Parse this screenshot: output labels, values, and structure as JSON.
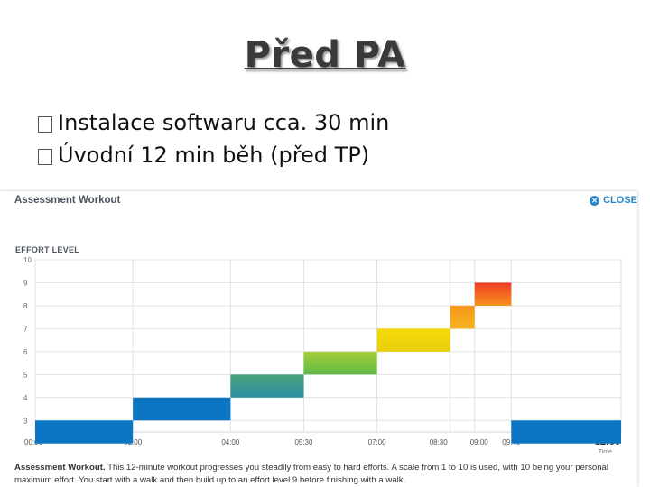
{
  "slide": {
    "title": "Před PA",
    "bullets": [
      {
        "icon": "checkbox-bullet-icon",
        "text": "Instalace softwaru cca. 30 min"
      },
      {
        "icon": "checkbox-bullet-icon",
        "text": "Úvodní 12 min běh (před TP)"
      }
    ]
  },
  "modal": {
    "title": "Assessment Workout",
    "close_label": "CLOSE",
    "effort_label": "EFFORT LEVEL",
    "footer_bold": "Assessment Workout.",
    "footer_text": " This 12-minute workout progresses you steadily from easy to hard efforts. A scale from 1 to 10 is used, with 10 being your personal maximum effort. You start with a walk and then build up to an effort level 9 before finishing with a walk."
  },
  "chart_data": {
    "type": "bar",
    "title": "",
    "ylabel": "EFFORT LEVEL",
    "xlabel": "Time",
    "y_ticks": [
      3,
      4,
      5,
      6,
      7,
      8,
      9,
      10
    ],
    "ylim": [
      2.5,
      10
    ],
    "x_ticks": [
      "00:00",
      "02:00",
      "04:00",
      "05:30",
      "07:00",
      "08:30",
      "09:00",
      "09:45",
      "12:00"
    ],
    "grid": true,
    "segments": [
      {
        "start": "00:00",
        "end": "02:00",
        "level": 3,
        "color": "#0b77c4"
      },
      {
        "start": "02:00",
        "end": "04:00",
        "level": 4,
        "color": "#0b77c4"
      },
      {
        "start": "04:00",
        "end": "05:30",
        "level": 5,
        "color": "#3aa08e"
      },
      {
        "start": "05:30",
        "end": "07:00",
        "level": 6,
        "color": "#8cc63f"
      },
      {
        "start": "07:00",
        "end": "08:30",
        "level": 7,
        "color": "#f2d500"
      },
      {
        "start": "08:30",
        "end": "09:00",
        "level": 8,
        "color": "#f7941d"
      },
      {
        "start": "09:00",
        "end": "09:45",
        "level": 9,
        "color": "#ef3b24"
      },
      {
        "start": "09:45",
        "end": "12:00",
        "level": 3,
        "color": "#0b77c4"
      }
    ]
  }
}
